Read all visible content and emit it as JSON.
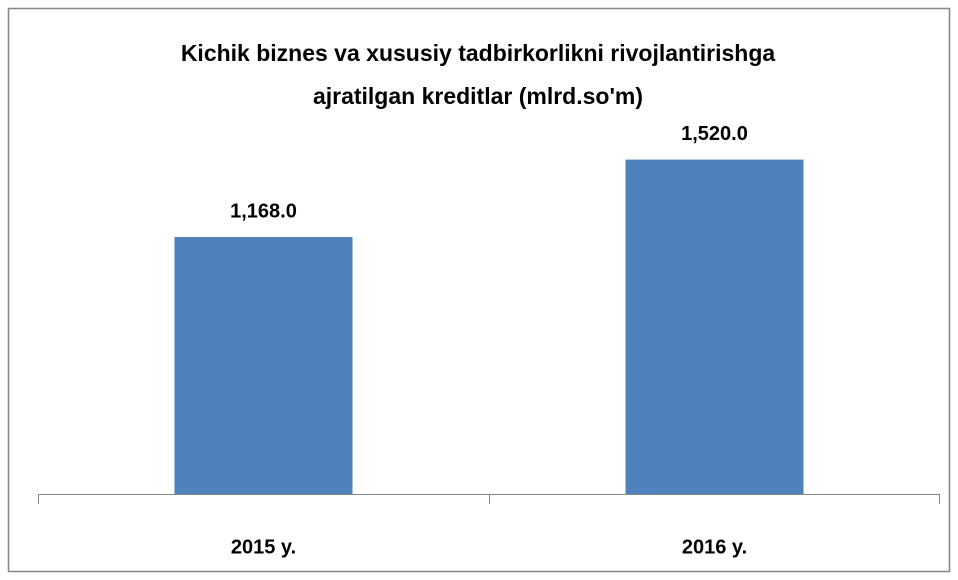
{
  "chart_data": {
    "type": "bar",
    "title": [
      "Kichik biznes va xususiy tadbirkorlikni rivojlantirishga",
      "ajratilgan kreditlar (mlrd.so'm)"
    ],
    "categories": [
      "2015 y.",
      "2016 y."
    ],
    "values": [
      1168,
      1520
    ],
    "value_labels": [
      "1,168.0",
      "1,520.0"
    ],
    "color": "#4f81bd",
    "ylim": [
      0,
      1600
    ]
  }
}
